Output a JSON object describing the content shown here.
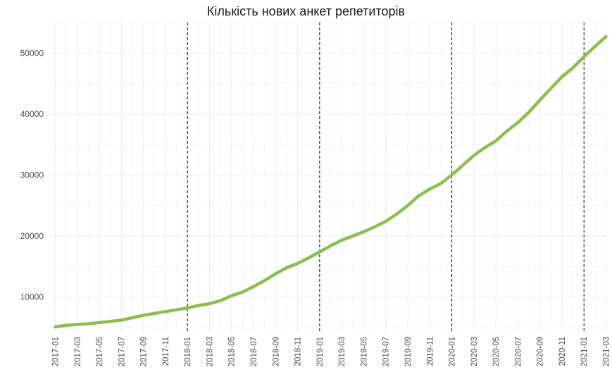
{
  "chart_data": {
    "type": "line",
    "title": "Кількість нових анкет репетиторів",
    "xlabel": "",
    "ylabel": "",
    "ylim": [
      4400,
      55000
    ],
    "y_ticks": [
      10000,
      20000,
      30000,
      40000,
      50000
    ],
    "y_tick_labels": [
      "10000",
      "20000",
      "30000",
      "40000",
      "50000"
    ],
    "x_tick_labels": [
      "2017-01",
      "2017-03",
      "2017-05",
      "2017-07",
      "2017-09",
      "2017-11",
      "2018-01",
      "2018-03",
      "2018-05",
      "2018-07",
      "2018-09",
      "2018-11",
      "2019-01",
      "2019-03",
      "2019-05",
      "2019-07",
      "2019-09",
      "2019-11",
      "2020-01",
      "2020-03",
      "2020-05",
      "2020-07",
      "2020-09",
      "2020-11",
      "2021-01",
      "2021-03"
    ],
    "vlines": [
      "2018-01",
      "2019-01",
      "2020-01",
      "2021-01"
    ],
    "grid": true,
    "legend": "none",
    "line_color": "#8cbf4f",
    "series": [
      {
        "x": [
          "2017-01",
          "2017-02",
          "2017-03",
          "2017-04",
          "2017-05",
          "2017-06",
          "2017-07",
          "2017-08",
          "2017-09",
          "2017-10",
          "2017-11",
          "2017-12",
          "2018-01",
          "2018-02",
          "2018-03",
          "2018-04",
          "2018-05",
          "2018-06",
          "2018-07",
          "2018-08",
          "2018-09",
          "2018-10",
          "2018-11",
          "2018-12",
          "2019-01",
          "2019-02",
          "2019-03",
          "2019-04",
          "2019-05",
          "2019-06",
          "2019-07",
          "2019-08",
          "2019-09",
          "2019-10",
          "2019-11",
          "2019-12",
          "2020-01",
          "2020-02",
          "2020-03",
          "2020-04",
          "2020-05",
          "2020-06",
          "2020-07",
          "2020-08",
          "2020-09",
          "2020-10",
          "2020-11",
          "2020-12",
          "2021-01",
          "2021-02",
          "2021-03"
        ],
        "values": [
          5100,
          5350,
          5500,
          5600,
          5800,
          6000,
          6200,
          6600,
          7000,
          7300,
          7600,
          7900,
          8200,
          8600,
          8900,
          9400,
          10200,
          10800,
          11700,
          12700,
          13800,
          14800,
          15500,
          16400,
          17400,
          18400,
          19300,
          20000,
          20700,
          21500,
          22400,
          23600,
          25000,
          26600,
          27700,
          28600,
          30000,
          31600,
          33200,
          34500,
          35600,
          37200,
          38600,
          40300,
          42300,
          44200,
          46100,
          47600,
          49400,
          51100,
          52700
        ]
      }
    ]
  }
}
